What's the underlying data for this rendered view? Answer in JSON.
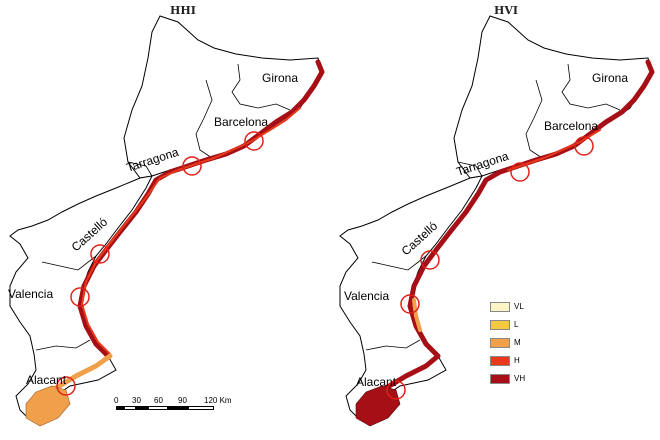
{
  "maps": [
    {
      "title": "HHI",
      "provinces": [
        "Girona",
        "Barcelona",
        "Tarragona",
        "Castelló",
        "Valencia",
        "Alacant"
      ]
    },
    {
      "title": "HVI",
      "provinces": [
        "Girona",
        "Barcelona",
        "Tarragona",
        "Castelló",
        "Valencia",
        "Alacant"
      ]
    }
  ],
  "legend": {
    "items": [
      {
        "label": "VL",
        "color": "#fbf4c6"
      },
      {
        "label": "L",
        "color": "#f6c943"
      },
      {
        "label": "M",
        "color": "#f0a04b"
      },
      {
        "label": "H",
        "color": "#e8391b"
      },
      {
        "label": "VH",
        "color": "#a50f15"
      }
    ]
  },
  "scale": {
    "ticks": [
      "0",
      "30",
      "60",
      "90",
      "120 Km"
    ]
  },
  "colors": {
    "border": "#000000",
    "coast_vh": "#a50f15",
    "coast_h": "#e8391b",
    "coast_m": "#f0a04b",
    "highlight_circle": "#e32119"
  }
}
